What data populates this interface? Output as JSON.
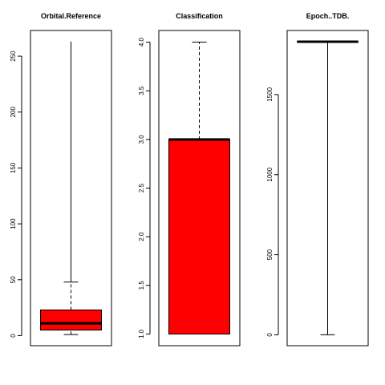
{
  "chart_data": [
    {
      "type": "box",
      "title": "Orbital.Reference",
      "ylim": [
        -9,
        273
      ],
      "yticks": [
        0,
        50,
        100,
        150,
        200,
        250
      ],
      "whisker_low": 1,
      "q1": 5,
      "median": 11,
      "q3": 23,
      "whisker_high": 48,
      "max": 263,
      "whisker_style": "dashed",
      "fill": "#ff0000"
    },
    {
      "type": "box",
      "title": "Classification",
      "ylim": [
        0.88,
        4.12
      ],
      "yticks": [
        "1.0",
        "1.5",
        "2.0",
        "2.5",
        "3.0",
        "3.5",
        "4.0"
      ],
      "whisker_low": 1.0,
      "q1": 1.0,
      "median": 3.0,
      "q3": 3.0,
      "whisker_high": 4.0,
      "whisker_style": "dashed",
      "fill": "#ff0000"
    },
    {
      "type": "box",
      "title": "Epoch..TDB.",
      "ylim": [
        -68,
        1900
      ],
      "yticks": [
        0,
        500,
        1000,
        1500
      ],
      "whisker_low": 0,
      "q1": 1830,
      "median": 1830,
      "q3": 1830,
      "whisker_high": 1830,
      "min": 0,
      "whisker_style": "solid",
      "fill": "#ff0000"
    }
  ]
}
